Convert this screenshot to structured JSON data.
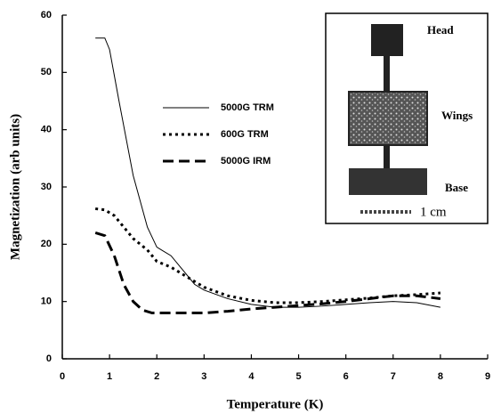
{
  "chart_data": {
    "type": "line",
    "xlabel": "Temperature (K)",
    "ylabel": "Magnetization (arb units)",
    "xlim": [
      0,
      9
    ],
    "xticks": [
      0,
      1,
      2,
      3,
      4,
      5,
      6,
      7,
      8,
      9
    ],
    "ylim": [
      0,
      60
    ],
    "yticks": [
      0,
      10,
      20,
      30,
      40,
      50,
      60
    ],
    "series": [
      {
        "name": "5000G TRM",
        "color": "#000000",
        "style": "solid",
        "x": [
          0.7,
          0.9,
          1.0,
          1.2,
          1.5,
          1.8,
          2.0,
          2.1,
          2.3,
          2.5,
          2.8,
          3.0,
          3.5,
          4.0,
          4.5,
          5.0,
          5.5,
          6.0,
          6.5,
          7.0,
          7.5,
          8.0
        ],
        "values": [
          56,
          56,
          54,
          45,
          32,
          23,
          19.5,
          19,
          18,
          16,
          13,
          12,
          10.5,
          9.5,
          9,
          9,
          9.2,
          9.5,
          9.8,
          10,
          9.8,
          9
        ]
      },
      {
        "name": "600G TRM",
        "color": "#000000",
        "style": "dotted",
        "x": [
          0.7,
          0.9,
          1.1,
          1.3,
          1.5,
          1.8,
          2.0,
          2.3,
          2.6,
          3.0,
          3.5,
          4.0,
          4.5,
          5.0,
          5.5,
          6.0,
          6.5,
          7.0,
          7.5,
          8.0
        ],
        "values": [
          26.2,
          26,
          25,
          23,
          21,
          19,
          17,
          16,
          14.5,
          12.5,
          11,
          10.2,
          9.8,
          9.8,
          10,
          10.3,
          10.6,
          11,
          11.2,
          11.5
        ]
      },
      {
        "name": "5000G IRM",
        "color": "#000000",
        "style": "dashed",
        "x": [
          0.7,
          0.9,
          1.1,
          1.3,
          1.5,
          1.7,
          1.9,
          2.5,
          3.0,
          3.5,
          4.0,
          4.5,
          5.0,
          5.5,
          6.0,
          6.5,
          7.0,
          7.5,
          8.0
        ],
        "values": [
          22,
          21.5,
          18,
          13,
          10,
          8.5,
          8,
          8,
          8,
          8.3,
          8.7,
          9,
          9.3,
          9.6,
          10,
          10.5,
          11,
          11,
          10.5
        ]
      }
    ]
  },
  "inset": {
    "head": "Head",
    "wings": "Wings",
    "base": "Base",
    "scale": "1 cm"
  }
}
